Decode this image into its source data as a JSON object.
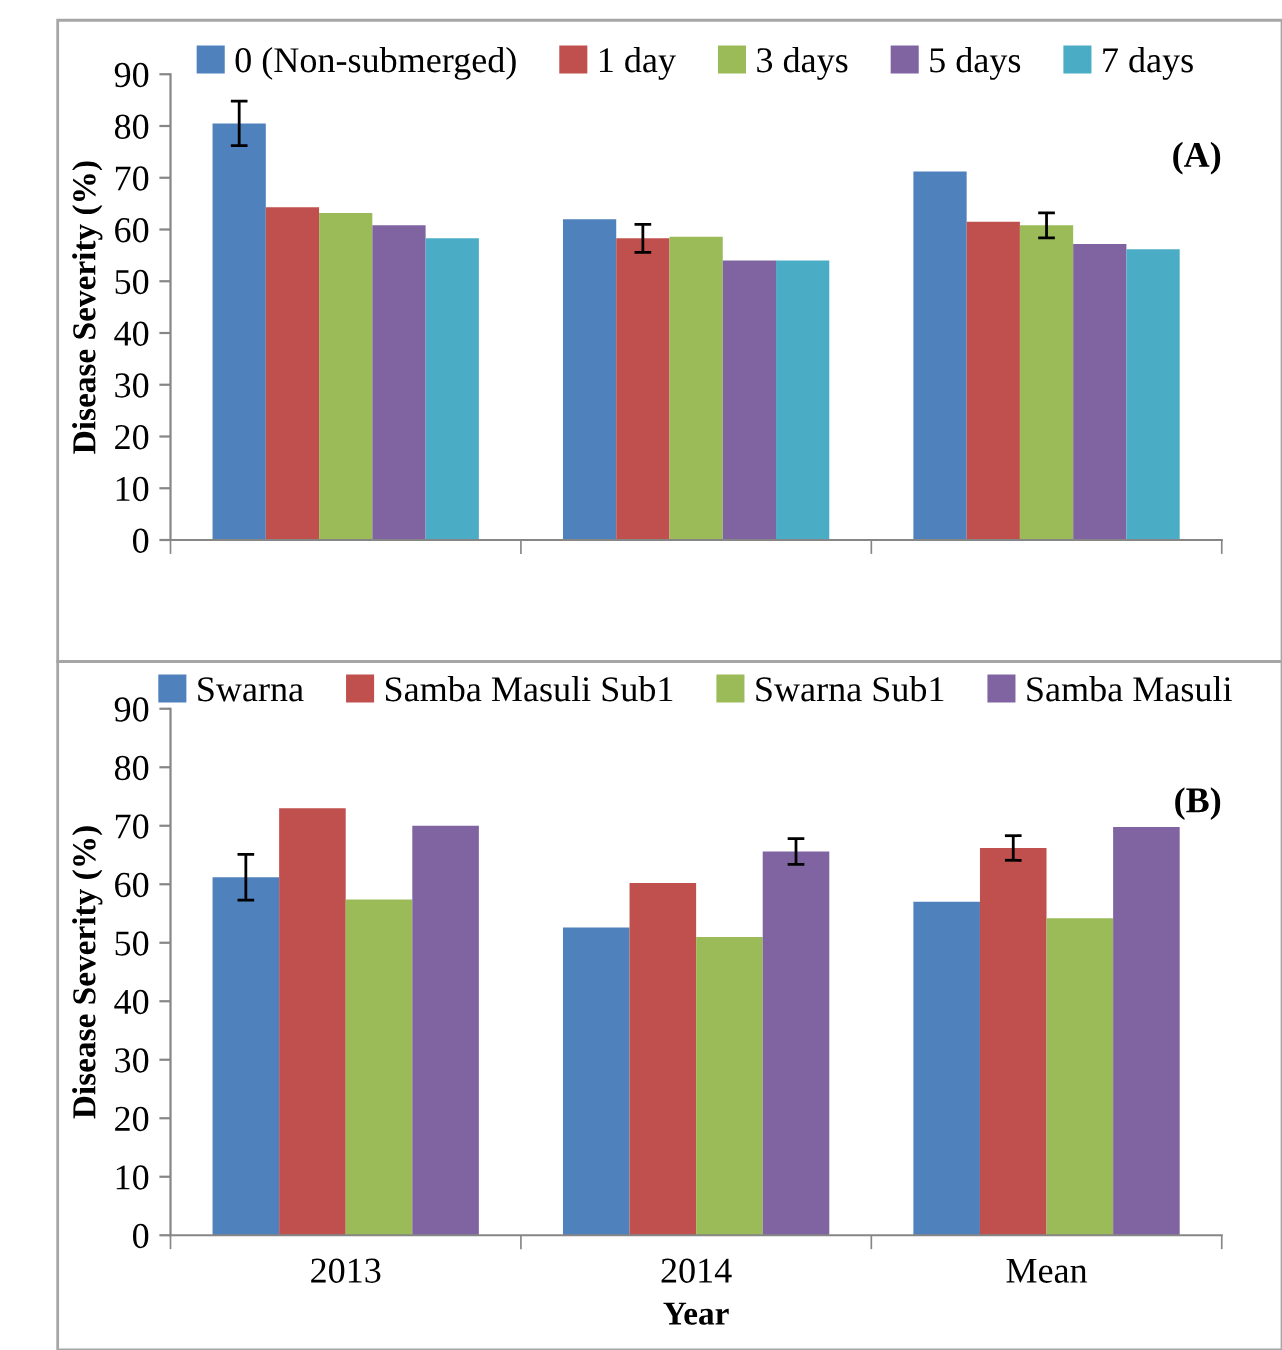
{
  "chart_data": [
    {
      "type": "bar",
      "categories": [
        null,
        null,
        null
      ],
      "ylabel": "Disease Severity (%)",
      "ylim": [
        0,
        90
      ],
      "yticks": [
        0,
        10,
        20,
        30,
        40,
        50,
        60,
        70,
        80,
        90
      ],
      "grid": false,
      "legend": "top",
      "tick_labels": "y",
      "annotations": [
        "(A)"
      ],
      "series": [
        {
          "name": "0 (Non-submerged)",
          "color": "#4f81bd",
          "values": [
            80.5,
            62,
            71.2
          ],
          "errors": [
            4.3,
            null,
            null
          ]
        },
        {
          "name": "1 day",
          "color": "#c0504d",
          "values": [
            64.3,
            58.3,
            61.5
          ],
          "errors": [
            null,
            2.7,
            null
          ]
        },
        {
          "name": "3 days",
          "color": "#9bbb59",
          "values": [
            63.2,
            58.6,
            60.8
          ],
          "errors": [
            null,
            null,
            2.4
          ]
        },
        {
          "name": "5 days",
          "color": "#8064a2",
          "values": [
            60.8,
            54,
            57.2
          ]
        },
        {
          "name": "7 days",
          "color": "#4bacc6",
          "values": [
            58.3,
            54,
            56.2
          ]
        }
      ]
    },
    {
      "type": "bar",
      "categories": [
        "2013",
        "2014",
        "Mean"
      ],
      "xlabel": "Year",
      "ylabel": "Disease Severity (%)",
      "ylim": [
        0,
        90
      ],
      "yticks": [
        0,
        10,
        20,
        30,
        40,
        50,
        60,
        70,
        80,
        90
      ],
      "grid": false,
      "legend": "top",
      "annotations": [
        "(B)"
      ],
      "series": [
        {
          "name": "Swarna",
          "color": "#4f81bd",
          "values": [
            61.2,
            52.6,
            57
          ],
          "errors": [
            3.9,
            null,
            null
          ]
        },
        {
          "name": "Samba Masuli Sub1",
          "color": "#c0504d",
          "values": [
            73,
            60.2,
            66.2
          ],
          "errors": [
            null,
            null,
            2.1
          ]
        },
        {
          "name": "Swarna Sub1",
          "color": "#9bbb59",
          "values": [
            57.4,
            51,
            54.2
          ]
        },
        {
          "name": "Samba Masuli",
          "color": "#8064a2",
          "values": [
            70,
            65.6,
            69.8
          ],
          "errors": [
            null,
            2.2,
            null
          ]
        }
      ]
    }
  ]
}
